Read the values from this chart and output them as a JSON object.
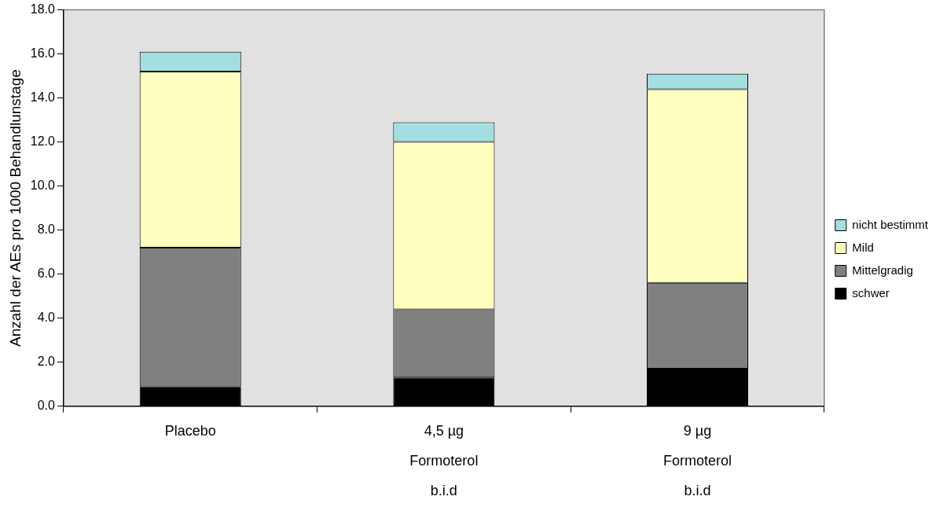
{
  "chart_data": {
    "type": "bar",
    "stacked": true,
    "ylabel": "Anzahl der AEs pro 1000 Behandlunstage",
    "categories": [
      "Placebo",
      "4,5 µg\nFormoterol\nb.i.d",
      "9 µg\nFormoterol\nb.i.d"
    ],
    "series": [
      {
        "name": "schwer",
        "color": "#000000",
        "values": [
          0.9,
          1.3,
          1.7
        ]
      },
      {
        "name": "Mittelgradig",
        "color": "#808080",
        "values": [
          6.3,
          3.1,
          3.9
        ]
      },
      {
        "name": "Mild",
        "color": "#ffffc0",
        "values": [
          8.0,
          7.6,
          8.8
        ]
      },
      {
        "name": "nicht bestimmt",
        "color": "#a3dfe0",
        "values": [
          0.9,
          0.9,
          0.7
        ]
      }
    ],
    "ylim": [
      0,
      18
    ],
    "yticks": [
      {
        "value": 0,
        "label": "0.0"
      },
      {
        "value": 2,
        "label": "2.0"
      },
      {
        "value": 4,
        "label": "4.0"
      },
      {
        "value": 6,
        "label": "6.0"
      },
      {
        "value": 8,
        "label": "8.0"
      },
      {
        "value": 10,
        "label": "10.0"
      },
      {
        "value": 12,
        "label": "12.0"
      },
      {
        "value": 14,
        "label": "14.0"
      },
      {
        "value": 16,
        "label": "16.0"
      },
      {
        "value": 18,
        "label": "18.0"
      }
    ],
    "grid": false,
    "legend": "right"
  }
}
